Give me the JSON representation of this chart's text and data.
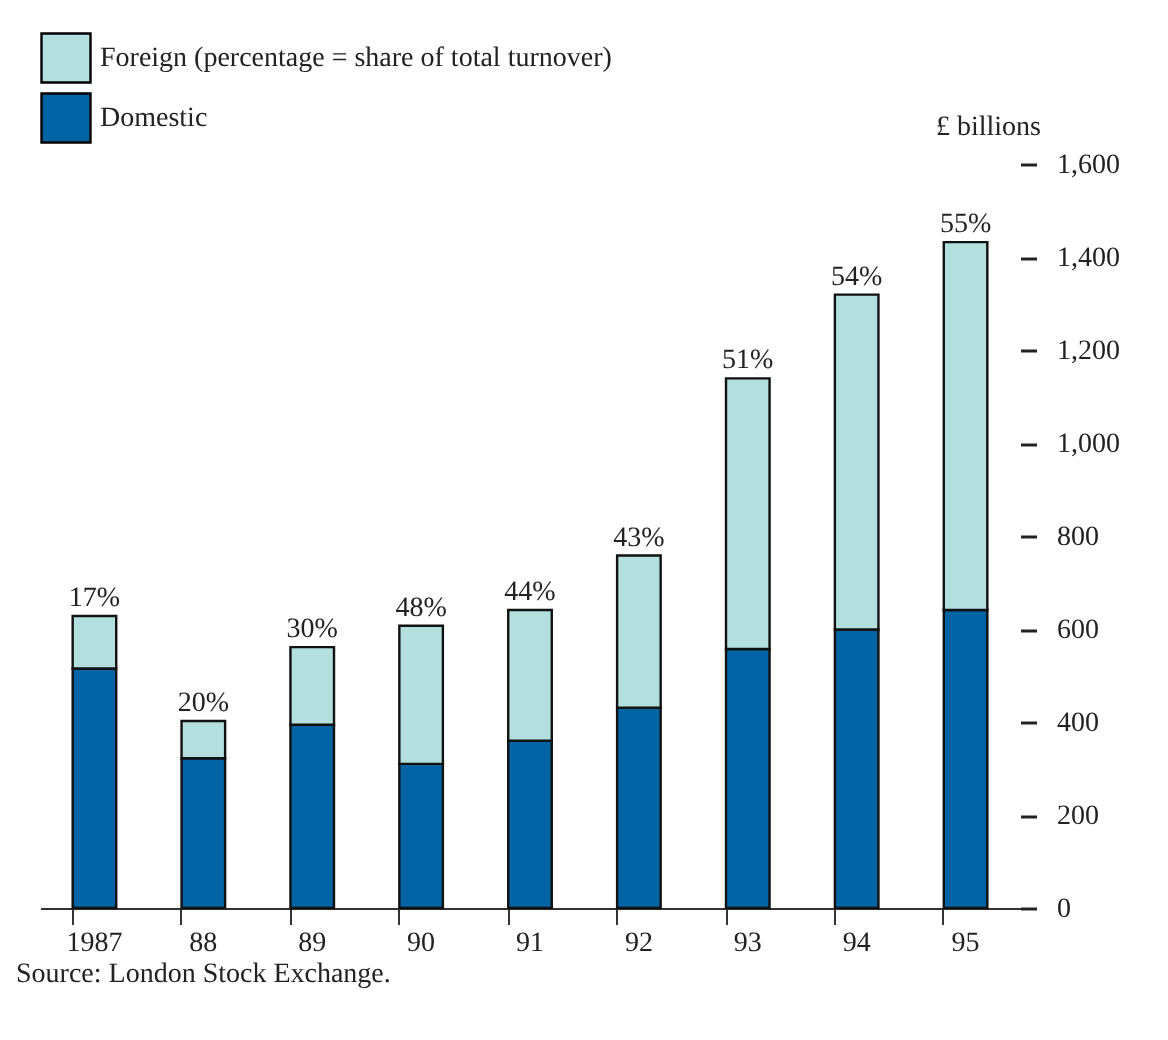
{
  "chart_data": {
    "type": "bar",
    "stacked": true,
    "categories": [
      "1987",
      "88",
      "89",
      "90",
      "91",
      "92",
      "93",
      "94",
      "95"
    ],
    "series": [
      {
        "name": "Domestic",
        "color": "#0063a3",
        "values": [
          515,
          322,
          394,
          310,
          360,
          431,
          557,
          599,
          641
        ]
      },
      {
        "name": "Foreign (percentage = share of total turnover)",
        "color": "#b3e0df",
        "values": [
          113,
          80,
          167,
          297,
          281,
          327,
          582,
          720,
          791
        ]
      }
    ],
    "ylabel": "£ billions",
    "ylim": [
      0,
      1600
    ],
    "yticks": [
      0,
      {
        "value": 200,
        "label": "200"
      },
      {
        "value": 400,
        "label": "400"
      },
      {
        "value": 600,
        "label": "600"
      },
      {
        "value": 800,
        "label": "800"
      },
      {
        "value": 1000,
        "label": "1,000"
      },
      {
        "value": 1200,
        "label": "1,200"
      },
      {
        "value": 1400,
        "label": "1,400"
      },
      {
        "value": 1600,
        "label": "1,600"
      }
    ],
    "grid": false,
    "legend": "top left",
    "annotations": [
      {
        "text": "17%",
        "x": "1987",
        "y": 628
      },
      {
        "text": "20%",
        "x": "88",
        "y": 402
      },
      {
        "text": "30%",
        "x": "89",
        "y": 561
      },
      {
        "text": "48%",
        "x": "90",
        "y": 607
      },
      {
        "text": "44%",
        "x": "91",
        "y": 641
      },
      {
        "text": "43%",
        "x": "92",
        "y": 758
      },
      {
        "text": "51%",
        "x": "93",
        "y": 1139
      },
      {
        "text": "54%",
        "x": "94",
        "y": 1319
      },
      {
        "text": "55%",
        "x": "95",
        "y": 1432
      },
      "Source:  London Stock Exchange."
    ]
  }
}
